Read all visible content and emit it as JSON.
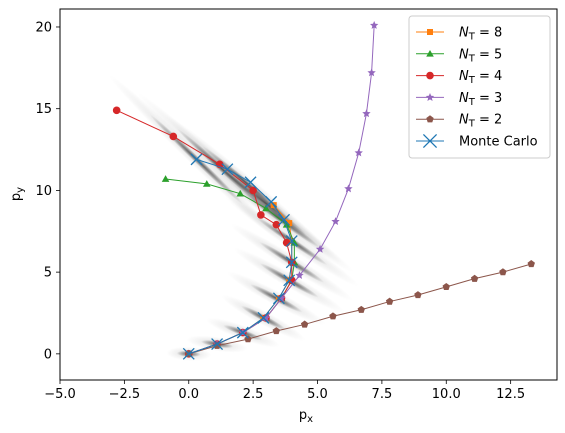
{
  "chart_data": {
    "type": "scatter",
    "xlabel": "p",
    "xlabel_sub": "x",
    "ylabel": "p",
    "ylabel_sub": "y",
    "xlim": [
      -5.0,
      14.3
    ],
    "ylim": [
      -1.6,
      21.1
    ],
    "xticks": [
      -5.0,
      -2.5,
      0.0,
      2.5,
      5.0,
      7.5,
      10.0,
      12.5
    ],
    "xtick_labels": [
      "−5.0",
      "−2.5",
      "0.0",
      "2.5",
      "5.0",
      "7.5",
      "10.0",
      "12.5"
    ],
    "yticks": [
      0,
      5,
      10,
      15,
      20
    ],
    "ytick_labels": [
      "0",
      "5",
      "10",
      "15",
      "20"
    ],
    "grid": false,
    "legend_position": "top-right",
    "density": [
      {
        "x": 0.0,
        "y": 0.0,
        "a": 3
      },
      {
        "x": 1.1,
        "y": 0.6,
        "a": 9
      },
      {
        "x": 2.1,
        "y": 1.3,
        "a": 20
      },
      {
        "x": 2.9,
        "y": 2.2,
        "a": 28
      },
      {
        "x": 3.4,
        "y": 3.4,
        "a": 28
      },
      {
        "x": 3.9,
        "y": 4.5,
        "a": 30
      },
      {
        "x": 4.0,
        "y": 5.6,
        "a": 32
      },
      {
        "x": 4.0,
        "y": 6.9,
        "a": 34
      },
      {
        "x": 3.6,
        "y": 8.2,
        "a": 36
      },
      {
        "x": 3.0,
        "y": 9.2,
        "a": 38
      },
      {
        "x": 2.2,
        "y": 10.5,
        "a": 40
      },
      {
        "x": 1.3,
        "y": 11.3,
        "a": 42
      },
      {
        "x": 0.3,
        "y": 11.9,
        "a": 44
      }
    ],
    "series": [
      {
        "name": "N_T = 8",
        "label_main": "N",
        "label_sub": "T",
        "label_rest": " = 8",
        "color": "#ff7f0e",
        "marker": "square",
        "x": [
          0.0,
          1.1,
          2.1,
          2.9,
          3.5,
          3.9,
          4.0,
          4.0,
          3.9,
          3.3
        ],
        "y": [
          0.0,
          0.6,
          1.3,
          2.2,
          3.4,
          4.5,
          5.6,
          6.9,
          8.0,
          9.1
        ]
      },
      {
        "name": "N_T = 5",
        "label_main": "N",
        "label_sub": "T",
        "label_rest": " = 5",
        "color": "#2ca02c",
        "marker": "triangle",
        "x": [
          0.0,
          1.1,
          2.1,
          3.0,
          3.6,
          4.0,
          4.1,
          4.1,
          3.8,
          3.0,
          2.0,
          0.7,
          -0.9
        ],
        "y": [
          0.0,
          0.6,
          1.3,
          2.2,
          3.4,
          4.5,
          5.6,
          6.8,
          7.9,
          8.9,
          9.8,
          10.4,
          10.7
        ]
      },
      {
        "name": "N_T = 4",
        "label_main": "N",
        "label_sub": "T",
        "label_rest": " = 4",
        "color": "#d62728",
        "marker": "circle",
        "x": [
          0.0,
          1.1,
          2.1,
          3.0,
          3.6,
          4.0,
          4.0,
          3.8,
          3.4,
          2.8,
          2.5,
          1.2,
          -0.6,
          -2.8
        ],
        "y": [
          0.0,
          0.6,
          1.3,
          2.2,
          3.4,
          4.5,
          5.6,
          6.8,
          7.9,
          8.5,
          10.0,
          11.6,
          13.3,
          14.9
        ]
      },
      {
        "name": "N_T = 3",
        "label_main": "N",
        "label_sub": "T",
        "label_rest": " = 3",
        "color": "#9467bd",
        "marker": "star",
        "x": [
          0.0,
          1.1,
          2.1,
          3.0,
          3.6,
          4.3,
          5.1,
          5.7,
          6.2,
          6.6,
          6.9,
          7.1,
          7.2
        ],
        "y": [
          0.0,
          0.6,
          1.3,
          2.2,
          3.4,
          4.8,
          6.4,
          8.1,
          10.1,
          12.3,
          14.7,
          17.2,
          20.1
        ]
      },
      {
        "name": "N_T = 2",
        "label_main": "N",
        "label_sub": "T",
        "label_rest": " = 2",
        "color": "#8c564b",
        "marker": "pentagon",
        "x": [
          0.0,
          1.1,
          2.3,
          3.4,
          4.5,
          5.6,
          6.7,
          7.8,
          8.9,
          10.0,
          11.1,
          12.2,
          13.3
        ],
        "y": [
          0.0,
          0.5,
          0.9,
          1.4,
          1.8,
          2.3,
          2.7,
          3.2,
          3.6,
          4.1,
          4.6,
          5.0,
          5.5
        ]
      },
      {
        "name": "Monte Carlo",
        "label_main": "Monte Carlo",
        "label_sub": "",
        "label_rest": "",
        "color": "#1f77b4",
        "marker": "x",
        "x": [
          0.0,
          1.1,
          2.1,
          2.9,
          3.5,
          3.9,
          4.0,
          4.0,
          3.7,
          3.2,
          2.4,
          1.5,
          0.3
        ],
        "y": [
          0.0,
          0.6,
          1.3,
          2.2,
          3.4,
          4.5,
          5.6,
          6.9,
          8.2,
          9.3,
          10.5,
          11.3,
          11.9
        ]
      }
    ]
  }
}
